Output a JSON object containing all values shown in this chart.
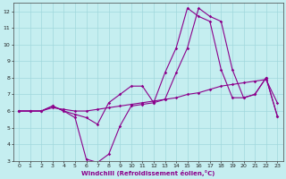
{
  "xlabel": "Windchill (Refroidissement éolien,°C)",
  "xlim": [
    -0.5,
    23.5
  ],
  "ylim": [
    3,
    12.5
  ],
  "yticks": [
    3,
    4,
    5,
    6,
    7,
    8,
    9,
    10,
    11,
    12
  ],
  "xticks": [
    0,
    1,
    2,
    3,
    4,
    5,
    6,
    7,
    8,
    9,
    10,
    11,
    12,
    13,
    14,
    15,
    16,
    17,
    18,
    19,
    20,
    21,
    22,
    23
  ],
  "bg_color": "#c5eef0",
  "grid_color": "#a0d8dc",
  "line_color": "#8b008b",
  "line1_x": [
    0,
    1,
    2,
    3,
    4,
    5,
    6,
    7,
    8,
    9,
    10,
    11,
    12,
    13,
    14,
    15,
    16,
    17,
    18,
    19,
    20,
    21,
    22,
    23
  ],
  "line1_y": [
    6.0,
    6.0,
    6.0,
    6.3,
    6.0,
    5.8,
    5.6,
    5.2,
    6.5,
    7.0,
    7.5,
    7.5,
    6.5,
    8.3,
    9.8,
    12.2,
    11.7,
    11.4,
    8.5,
    6.8,
    6.8,
    7.0,
    8.0,
    5.7
  ],
  "line2_x": [
    0,
    1,
    2,
    3,
    4,
    5,
    6,
    7,
    8,
    9,
    10,
    11,
    12,
    13,
    14,
    15,
    16,
    17,
    18,
    19,
    20,
    21,
    22,
    23
  ],
  "line2_y": [
    6.0,
    6.0,
    6.0,
    6.3,
    6.0,
    5.6,
    3.1,
    2.9,
    3.4,
    5.1,
    6.3,
    6.4,
    6.5,
    6.7,
    8.3,
    9.8,
    12.2,
    11.7,
    11.4,
    8.5,
    6.8,
    7.0,
    8.0,
    5.7
  ],
  "line3_x": [
    0,
    1,
    2,
    3,
    4,
    5,
    6,
    7,
    8,
    9,
    10,
    11,
    12,
    13,
    14,
    15,
    16,
    17,
    18,
    19,
    20,
    21,
    22,
    23
  ],
  "line3_y": [
    6.0,
    6.0,
    6.0,
    6.2,
    6.1,
    6.0,
    6.0,
    6.1,
    6.2,
    6.3,
    6.4,
    6.5,
    6.6,
    6.7,
    6.8,
    7.0,
    7.1,
    7.3,
    7.5,
    7.6,
    7.7,
    7.8,
    7.9,
    6.5
  ]
}
